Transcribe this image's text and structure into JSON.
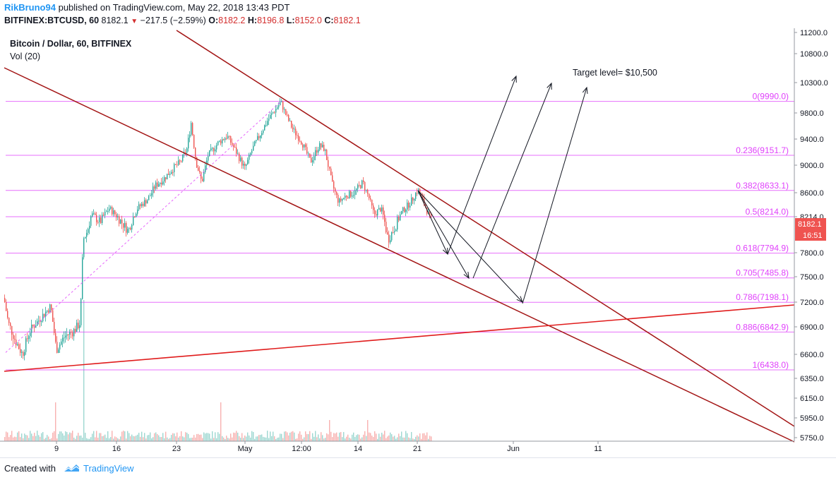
{
  "header": {
    "author": "RikBruno94",
    "published_text": "published on TradingView.com, May 22, 2018 13:43 PDT",
    "symbol": "BITFINEX:BTCUSD, 60",
    "last": "8182.1",
    "change": "−217.5 (−2.59%)",
    "open_label": "O:",
    "open": "8182.2",
    "high_label": "H:",
    "high": "8196.8",
    "low_label": "L:",
    "low": "8152.0",
    "close_label": "C:",
    "close": "8182.1"
  },
  "legend": {
    "title": "Bitcoin / Dollar, 60, BITFINEX",
    "volume": "Vol (20)"
  },
  "annotation": {
    "target": "Target level= $10,500"
  },
  "price_badge": {
    "price": "8182.1",
    "countdown": "16:51"
  },
  "footer": {
    "created_with": "Created with",
    "brand": "TradingView"
  },
  "colors": {
    "fib": "#e040fb",
    "trend_dark": "#a31515",
    "trend_red": "#e01b1b",
    "candle_up": "#26a69a",
    "candle_down": "#ef5350",
    "badge": "#ef5350",
    "brand": "#2196f3"
  },
  "chart_data": {
    "type": "candlestick",
    "title": "Bitcoin / Dollar, 60, BITFINEX",
    "y_axis_ticks": [
      "11200.0",
      "10800.0",
      "10300.0",
      "9800.0",
      "9400.0",
      "9000.0",
      "8600.0",
      "8214.0",
      "7800.0",
      "7500.0",
      "7200.0",
      "6900.0",
      "6600.0",
      "6350.0",
      "6150.0",
      "5950.0",
      "5750.0"
    ],
    "y_tick_values": [
      11200,
      10800,
      10300,
      9800,
      9400,
      9000,
      8600,
      8214,
      7800,
      7500,
      7200,
      6900,
      6600,
      6350,
      6150,
      5950,
      5750
    ],
    "x_axis_ticks": [
      {
        "label": "9",
        "date": "2018-04-09"
      },
      {
        "label": "16",
        "date": "2018-04-16"
      },
      {
        "label": "23",
        "date": "2018-04-23"
      },
      {
        "label": "May",
        "date": "2018-05-01"
      },
      {
        "label": "12:00",
        "date": "2018-05-07 12:00"
      },
      {
        "label": "14",
        "date": "2018-05-14"
      },
      {
        "label": "21",
        "date": "2018-05-21"
      },
      {
        "label": "Jun",
        "date": "2018-06-01"
      },
      {
        "label": "11",
        "date": "2018-06-11"
      }
    ],
    "fib_levels": [
      {
        "ratio": "0",
        "price": 9990.0,
        "label": "0(9990.0)"
      },
      {
        "ratio": "0.236",
        "price": 9151.7,
        "label": "0.236(9151.7)"
      },
      {
        "ratio": "0.382",
        "price": 8633.1,
        "label": "0.382(8633.1)"
      },
      {
        "ratio": "0.5",
        "price": 8214.0,
        "label": "0.5(8214.0)"
      },
      {
        "ratio": "0.618",
        "price": 7794.9,
        "label": "0.618(7794.9)"
      },
      {
        "ratio": "0.705",
        "price": 7485.8,
        "label": "0.705(7485.8)"
      },
      {
        "ratio": "0.786",
        "price": 7198.1,
        "label": "0.786(7198.1)"
      },
      {
        "ratio": "0.886",
        "price": 6842.9,
        "label": "0.886(6842.9)"
      },
      {
        "ratio": "1",
        "price": 6438.0,
        "label": "1(6438.0)"
      }
    ],
    "last_price": 8182.1,
    "price_anchors": [
      [
        0,
        7500
      ],
      [
        4,
        7350
      ],
      [
        12,
        6950
      ],
      [
        22,
        6750
      ],
      [
        32,
        6600
      ],
      [
        42,
        6850
      ],
      [
        52,
        6950
      ],
      [
        62,
        7050
      ],
      [
        72,
        7150
      ],
      [
        80,
        6650
      ],
      [
        92,
        6800
      ],
      [
        104,
        6850
      ],
      [
        114,
        6950
      ],
      [
        118,
        7950
      ],
      [
        124,
        8050
      ],
      [
        130,
        8250
      ],
      [
        142,
        8150
      ],
      [
        155,
        8350
      ],
      [
        168,
        8200
      ],
      [
        182,
        8050
      ],
      [
        195,
        8350
      ],
      [
        210,
        8500
      ],
      [
        220,
        8700
      ],
      [
        232,
        8800
      ],
      [
        245,
        8950
      ],
      [
        256,
        9050
      ],
      [
        265,
        9250
      ],
      [
        271,
        9650
      ],
      [
        278,
        9050
      ],
      [
        286,
        8750
      ],
      [
        295,
        9150
      ],
      [
        310,
        9350
      ],
      [
        322,
        9450
      ],
      [
        335,
        9200
      ],
      [
        347,
        8950
      ],
      [
        358,
        9250
      ],
      [
        370,
        9500
      ],
      [
        380,
        9700
      ],
      [
        390,
        9850
      ],
      [
        398,
        9980
      ],
      [
        406,
        9750
      ],
      [
        415,
        9550
      ],
      [
        428,
        9350
      ],
      [
        440,
        9050
      ],
      [
        452,
        9300
      ],
      [
        460,
        9250
      ],
      [
        470,
        8750
      ],
      [
        480,
        8450
      ],
      [
        490,
        8550
      ],
      [
        502,
        8600
      ],
      [
        514,
        8750
      ],
      [
        522,
        8550
      ],
      [
        530,
        8250
      ],
      [
        540,
        8350
      ],
      [
        550,
        7950
      ],
      [
        560,
        8100
      ],
      [
        570,
        8300
      ],
      [
        582,
        8450
      ],
      [
        592,
        8650
      ],
      [
        600,
        8450
      ],
      [
        610,
        8180
      ]
    ]
  }
}
